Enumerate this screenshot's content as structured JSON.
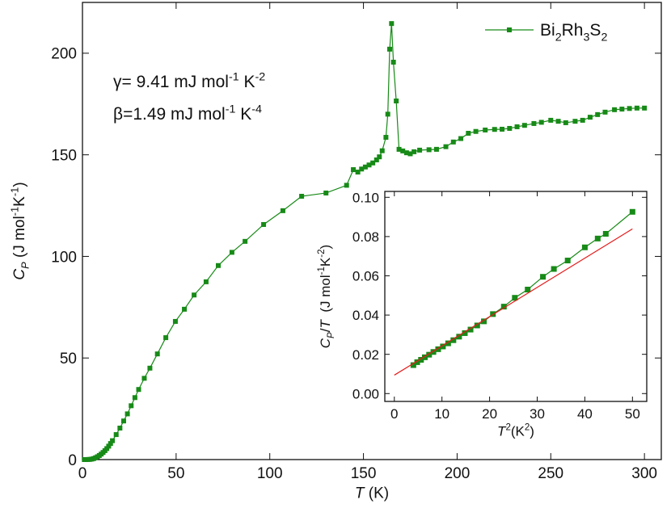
{
  "chart_data": [
    {
      "type": "line",
      "xlabel": [
        {
          "t": "T",
          "i": true
        },
        {
          "t": " (K)"
        }
      ],
      "ylabel": [
        {
          "t": "C",
          "i": true
        },
        {
          "t": "P",
          "s": "sub",
          "i": true
        },
        {
          "t": " (J mol"
        },
        {
          "t": "-1",
          "s": "sup"
        },
        {
          "t": "K"
        },
        {
          "t": "-1",
          "s": "sup"
        },
        {
          "t": ")"
        }
      ],
      "annotations": [
        [
          {
            "t": "γ= 9.41 mJ mol"
          },
          {
            "t": "-1",
            "s": "sup"
          },
          {
            "t": " K"
          },
          {
            "t": "-2",
            "s": "sup"
          }
        ],
        [
          {
            "t": "β=1.49 mJ mol"
          },
          {
            "t": "-1",
            "s": "sup"
          },
          {
            "t": " K"
          },
          {
            "t": "-4",
            "s": "sup"
          }
        ]
      ],
      "x": [
        1,
        2,
        3,
        4,
        5,
        6,
        7,
        8,
        9,
        10,
        11,
        12,
        13,
        14,
        15,
        16,
        18,
        20,
        22,
        24,
        26,
        28,
        30,
        33,
        36,
        40,
        44.5,
        49.6,
        54.4,
        59.6,
        66,
        72.5,
        79.8,
        86.8,
        96.7,
        107,
        117,
        130,
        141,
        144.6,
        147,
        149,
        151,
        153,
        155,
        157,
        158.5,
        160,
        162,
        163,
        164,
        165,
        166,
        167.5,
        169,
        171,
        173,
        175,
        177,
        180,
        185,
        189,
        194,
        198,
        202,
        206,
        210,
        215,
        220,
        224,
        228,
        232,
        236,
        241,
        245,
        250,
        254,
        258,
        263,
        267,
        271,
        275,
        279,
        284,
        288,
        292,
        296,
        300
      ],
      "series": [
        {
          "name": [
            {
              "t": "Bi"
            },
            {
              "t": "2",
              "s": "sub"
            },
            {
              "t": "Rh"
            },
            {
              "t": "3",
              "s": "sub"
            },
            {
              "t": "S"
            },
            {
              "t": "2",
              "s": "sub"
            }
          ],
          "color": "#178a17",
          "values": [
            0,
            0,
            0.05,
            0.1,
            0.25,
            0.5,
            0.9,
            1.4,
            2,
            2.7,
            3.5,
            4.4,
            5.4,
            6.6,
            7.9,
            9.3,
            12.3,
            15.5,
            19,
            22.5,
            26.5,
            30.5,
            34.5,
            40,
            45,
            52,
            60,
            68,
            74,
            81,
            87.5,
            95.5,
            102,
            107.4,
            115.7,
            122.5,
            129.6,
            131.2,
            135,
            142.7,
            141.5,
            143,
            144,
            145,
            146,
            147.5,
            149,
            152,
            158.6,
            170,
            202,
            214.6,
            195.6,
            176.5,
            152.7,
            151.9,
            151,
            150.5,
            151.5,
            152.3,
            152.5,
            152.7,
            154,
            156.3,
            158,
            160.6,
            161.5,
            162.2,
            162.5,
            162.6,
            163,
            163.8,
            164.5,
            165.4,
            166,
            167,
            166.5,
            165.8,
            166.5,
            167,
            168.5,
            169.8,
            171,
            172.2,
            172.5,
            172.8,
            173,
            173
          ]
        }
      ],
      "xlim": [
        0,
        309
      ],
      "ylim": [
        0,
        225
      ],
      "xticks": [
        0,
        50,
        100,
        150,
        200,
        250,
        300
      ],
      "yticks": [
        0,
        50,
        100,
        150,
        200
      ],
      "legend": "upper right"
    },
    {
      "type": "line",
      "xlabel": [
        {
          "t": "T",
          "i": true
        },
        {
          "t": "2",
          "s": "sup"
        },
        {
          "t": "(K"
        },
        {
          "t": "2",
          "s": "sup"
        },
        {
          "t": ")"
        }
      ],
      "ylabel": [
        {
          "t": "C",
          "i": true
        },
        {
          "t": "P",
          "s": "sub",
          "i": true
        },
        {
          "t": "/"
        },
        {
          "t": "T",
          "i": true
        },
        {
          "t": "  (J mol"
        },
        {
          "t": "-1",
          "s": "sup"
        },
        {
          "t": "K"
        },
        {
          "t": "-2",
          "s": "sup"
        },
        {
          "t": ")"
        }
      ],
      "x": [
        4,
        4.8,
        5.6,
        6.4,
        7.3,
        8.2,
        9.2,
        10.2,
        11.3,
        12.4,
        13.6,
        14.8,
        16,
        17.4,
        18.8,
        20.7,
        23,
        25.3,
        28,
        31.2,
        33.5,
        36.4,
        40,
        42.7,
        44.4,
        50
      ],
      "series": [
        {
          "color": "#178a17",
          "values": [
            0.0145,
            0.016,
            0.0172,
            0.0185,
            0.0198,
            0.0212,
            0.0226,
            0.024,
            0.0256,
            0.0272,
            0.029,
            0.0308,
            0.0326,
            0.0347,
            0.0368,
            0.0405,
            0.0443,
            0.0488,
            0.053,
            0.0595,
            0.0635,
            0.0678,
            0.0745,
            0.079,
            0.0814,
            0.0926
          ]
        }
      ],
      "fit": {
        "color": "#e41a1a",
        "x": [
          0,
          50
        ],
        "values": [
          0.0094,
          0.0839
        ]
      },
      "xlim": [
        -2,
        53
      ],
      "ylim": [
        -0.004,
        0.103
      ],
      "xticks": [
        0,
        10,
        20,
        30,
        40,
        50
      ],
      "yticks": [
        {
          "value": 0,
          "label": "0.00"
        },
        {
          "value": 0.02,
          "label": "0.02"
        },
        {
          "value": 0.04,
          "label": "0.04"
        },
        {
          "value": 0.06,
          "label": "0.06"
        },
        {
          "value": 0.08,
          "label": "0.08"
        },
        {
          "value": 0.1,
          "label": "0.10"
        }
      ]
    }
  ]
}
